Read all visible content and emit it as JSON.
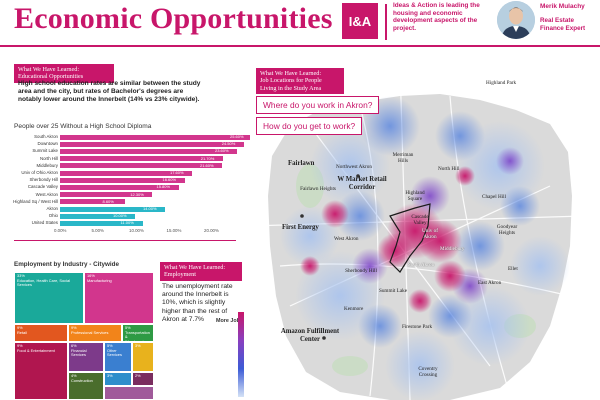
{
  "header": {
    "title": "Economic Opportunities",
    "logo_text": "I&A",
    "tagline": "Ideas & Action is leading the housing and economic development aspects of the project.",
    "person_name": "Merik Mulachy",
    "person_role": "Real Estate Finance Expert"
  },
  "education": {
    "label_line1": "What We Have Learned:",
    "label_line2": "Educational Opportunities",
    "text": "High school education rates are similar between the study area and the city, but rates of Bachelor's degrees are notably lower around the Innerbelt (14% vs 23% citywide)."
  },
  "chart_data": {
    "type": "bar",
    "title": "People over 25 Without a High School Diploma",
    "orientation": "horizontal",
    "categories": [
      "South Akron",
      "Downtown",
      "Summit Lake",
      "North Hill",
      "Middlebury",
      "Univ of Ohio Akron",
      "Sherbondy Hill",
      "Cascade Valley",
      "West Akron",
      "Highland Sq / West Hill",
      "Akron",
      "Ohio",
      "United States"
    ],
    "values": [
      25.6,
      24.5,
      23.6,
      21.7,
      21.6,
      17.6,
      16.6,
      15.8,
      12.3,
      8.6,
      14.0,
      10.0,
      11.0
    ],
    "value_labels": [
      "25.60%",
      "24.50%",
      "23.60%",
      "21.70%",
      "21.60%",
      "17.60%",
      "16.60%",
      "15.80%",
      "12.30%",
      "8.60%",
      "14.00%",
      "10.00%",
      "11.00%"
    ],
    "colors": [
      "#d2368d",
      "#d2368d",
      "#d2368d",
      "#d2368d",
      "#d2368d",
      "#d2368d",
      "#d2368d",
      "#d2368d",
      "#d2368d",
      "#d2368d",
      "#2ab7c8",
      "#2ab7c8",
      "#2ab7c8"
    ],
    "xlim": [
      0,
      20
    ],
    "xticks": [
      "0.00%",
      "5.00%",
      "10.00%",
      "15.00%",
      "20.00%"
    ]
  },
  "employment": {
    "treemap_title": "Employment by Industry - Citywide",
    "label_line1": "What We Have Learned:",
    "label_line2": "Employment",
    "text": "The unemployment rate around the Innerbelt is 10%, which is slightly higher than the rest of Akron at 7.7%",
    "legend_label": "More Jobs",
    "tiles": [
      {
        "pct": "33%",
        "name": "Education, Health Care, Social Services",
        "color": "#1aa99a"
      },
      {
        "pct": "16%",
        "name": "Manufacturing",
        "color": "#d2368d"
      },
      {
        "pct": "9%",
        "name": "Retail",
        "color": "#e2571f"
      },
      {
        "pct": "9%",
        "name": "Professional Services",
        "color": "#f2841a"
      },
      {
        "pct": "5%",
        "name": "Transportation & Warehousing",
        "color": "#2e9a44"
      },
      {
        "pct": "9%",
        "name": "Food & Entertainment",
        "color": "#b0164f"
      },
      {
        "pct": "6%",
        "name": "Financial Services",
        "color": "#7d3a8a"
      },
      {
        "pct": "5%",
        "name": "Other Services",
        "color": "#3a7fd0"
      },
      {
        "pct": "4%",
        "name": "Construction",
        "color": "#4a6d2c"
      },
      {
        "pct": "3%",
        "name": "",
        "color": "#2d8ecb"
      },
      {
        "pct": "3%",
        "name": "",
        "color": "#e8b21d"
      },
      {
        "pct": "2%",
        "name": "",
        "color": "#7a2d5f"
      },
      {
        "pct": "",
        "name": "",
        "color": "#a05a9a"
      }
    ]
  },
  "map": {
    "label_line1": "What We Have Learned:",
    "label_line2": "Job Locations for People",
    "label_line3": "Living in the Study Area",
    "question1": "Where do you work in Akron?",
    "question2": "How do you get to work?",
    "places": {
      "fairlawn": "Fairlawn",
      "fairlawn_heights": "Fairlawn Heights",
      "w_market": "W Market Retail Corridor",
      "northwest_akron": "Northwest Akron",
      "merriman_hills": "Merriman Hills",
      "north_hill": "North Hill",
      "chapel_hill": "Chapel Hill",
      "highland_square": "Highland Square",
      "first_energy": "First Energy",
      "west_akron": "West Akron",
      "cascade_valley": "Cascade Valley",
      "university_park": "Univ of Akron",
      "middlebury": "Middlebury",
      "goodyear": "Goodyear Heights",
      "sherbondy_hill": "Sherbondy Hill",
      "summit_lake": "Summit Lake",
      "south_akron": "South Akron",
      "ellet": "Ellet",
      "kenmore": "Kenmore",
      "firestone_park": "Firestone Park",
      "amazon": "Amazon Fulfillment Center",
      "coventry": "Coventry Crossing",
      "highland_park": "Highland Park",
      "east_akron": "East Akron"
    }
  }
}
